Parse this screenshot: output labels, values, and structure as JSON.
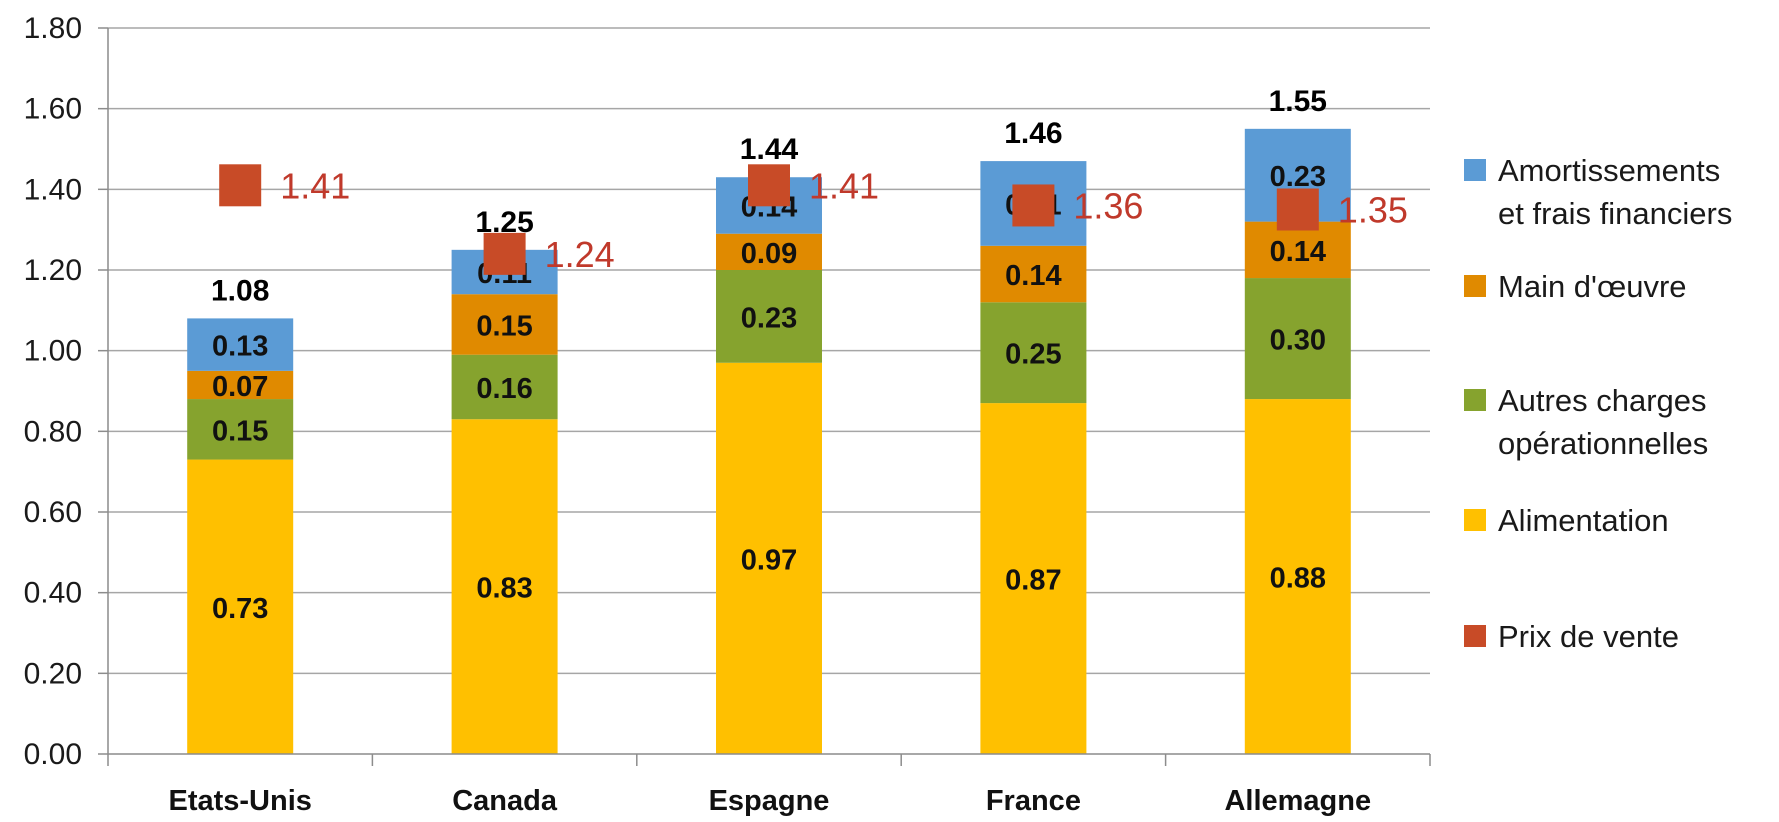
{
  "chart_data": {
    "type": "bar",
    "stacked": true,
    "categories": [
      "Etats-Unis",
      "Canada",
      "Espagne",
      "France",
      "Allemagne"
    ],
    "ylim": [
      0,
      1.8
    ],
    "yticks": [
      "0.00",
      "0.20",
      "0.40",
      "0.60",
      "0.80",
      "1.00",
      "1.20",
      "1.40",
      "1.60",
      "1.80"
    ],
    "grid": true,
    "legend_position": "right",
    "series": [
      {
        "name": "Alimentation",
        "color": "#FFC000",
        "values": [
          0.73,
          0.83,
          0.97,
          0.87,
          0.88
        ],
        "labels": [
          "0.73",
          "0.83",
          "0.97",
          "0.87",
          "0.88"
        ]
      },
      {
        "name": "Autres charges opérationnelles",
        "color": "#86A32E",
        "values": [
          0.15,
          0.16,
          0.23,
          0.25,
          0.3
        ],
        "labels": [
          "0.15",
          "0.16",
          "0.23",
          "0.25",
          "0.30"
        ]
      },
      {
        "name": "Main d'œuvre",
        "color": "#E08A00",
        "values": [
          0.07,
          0.15,
          0.09,
          0.14,
          0.14
        ],
        "labels": [
          "0.07",
          "0.15",
          "0.09",
          "0.14",
          "0.14"
        ]
      },
      {
        "name": "Amortissements et frais financiers",
        "color": "#5B9BD5",
        "values": [
          0.13,
          0.11,
          0.14,
          0.21,
          0.23
        ],
        "labels": [
          "0.13",
          "0.11",
          "0.14",
          "0.21",
          "0.23"
        ]
      }
    ],
    "totals": [
      "1.08",
      "1.25",
      "1.44",
      "1.46",
      "1.55"
    ],
    "price_series": {
      "name": "Prix de vente",
      "color": "#C84B27",
      "values": [
        1.41,
        1.24,
        1.41,
        1.36,
        1.35
      ],
      "labels": [
        "1.41",
        "1.24",
        "1.41",
        "1.36",
        "1.35"
      ]
    },
    "legend": [
      {
        "lines": [
          "Amortissements",
          "et frais financiers"
        ],
        "color": "#5B9BD5"
      },
      {
        "lines": [
          "Main d'œuvre"
        ],
        "color": "#E08A00"
      },
      {
        "lines": [
          "Autres charges",
          "opérationnelles"
        ],
        "color": "#86A32E"
      },
      {
        "lines": [
          "Alimentation"
        ],
        "color": "#FFC000"
      },
      {
        "lines": [
          "Prix de vente"
        ],
        "color": "#C84B27"
      }
    ]
  }
}
